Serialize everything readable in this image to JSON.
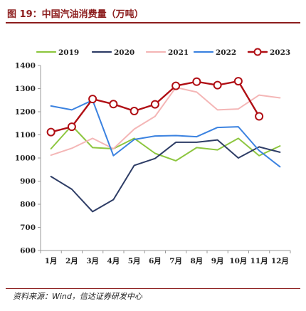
{
  "header": {
    "title": "图 19：中国汽油消费量（万吨）"
  },
  "footer": {
    "source": "资料来源：Wind，信达证券研发中心"
  },
  "colors": {
    "title": "#8c1d1d",
    "axis": "#999999"
  },
  "chart_data": {
    "type": "line",
    "title": "",
    "xlabel": "",
    "ylabel": "",
    "ylim": [
      600,
      1400
    ],
    "yticks": [
      600,
      700,
      800,
      900,
      1000,
      1100,
      1200,
      1300,
      1400
    ],
    "grid": false,
    "legend_position": "top",
    "categories": [
      "1月",
      "2月",
      "3月",
      "4月",
      "5月",
      "6月",
      "7月",
      "8月",
      "9月",
      "10月",
      "11月",
      "12月"
    ],
    "series": [
      {
        "name": "2019",
        "color": "#8dc63f",
        "marker": "none",
        "values": [
          1040,
          1140,
          1045,
          1040,
          1085,
          1020,
          988,
          1045,
          1035,
          1085,
          1010,
          1052
        ]
      },
      {
        "name": "2020",
        "color": "#2e3d66",
        "marker": "none",
        "values": [
          920,
          865,
          768,
          820,
          968,
          998,
          1068,
          1068,
          1078,
          1000,
          1048,
          1025
        ]
      },
      {
        "name": "2021",
        "color": "#f4b6b6",
        "marker": "none",
        "values": [
          1012,
          1042,
          1085,
          1040,
          1125,
          1180,
          1305,
          1285,
          1208,
          1212,
          1272,
          1260
        ]
      },
      {
        "name": "2022",
        "color": "#3b82e0",
        "marker": "none",
        "values": [
          1225,
          1208,
          1250,
          1010,
          1080,
          1095,
          1097,
          1092,
          1132,
          1135,
          1032,
          962
        ]
      },
      {
        "name": "2023",
        "color": "#b00e14",
        "marker": "circle",
        "values": [
          1112,
          1135,
          1255,
          1233,
          1203,
          1232,
          1312,
          1330,
          1315,
          1332,
          1180,
          null
        ]
      }
    ]
  }
}
